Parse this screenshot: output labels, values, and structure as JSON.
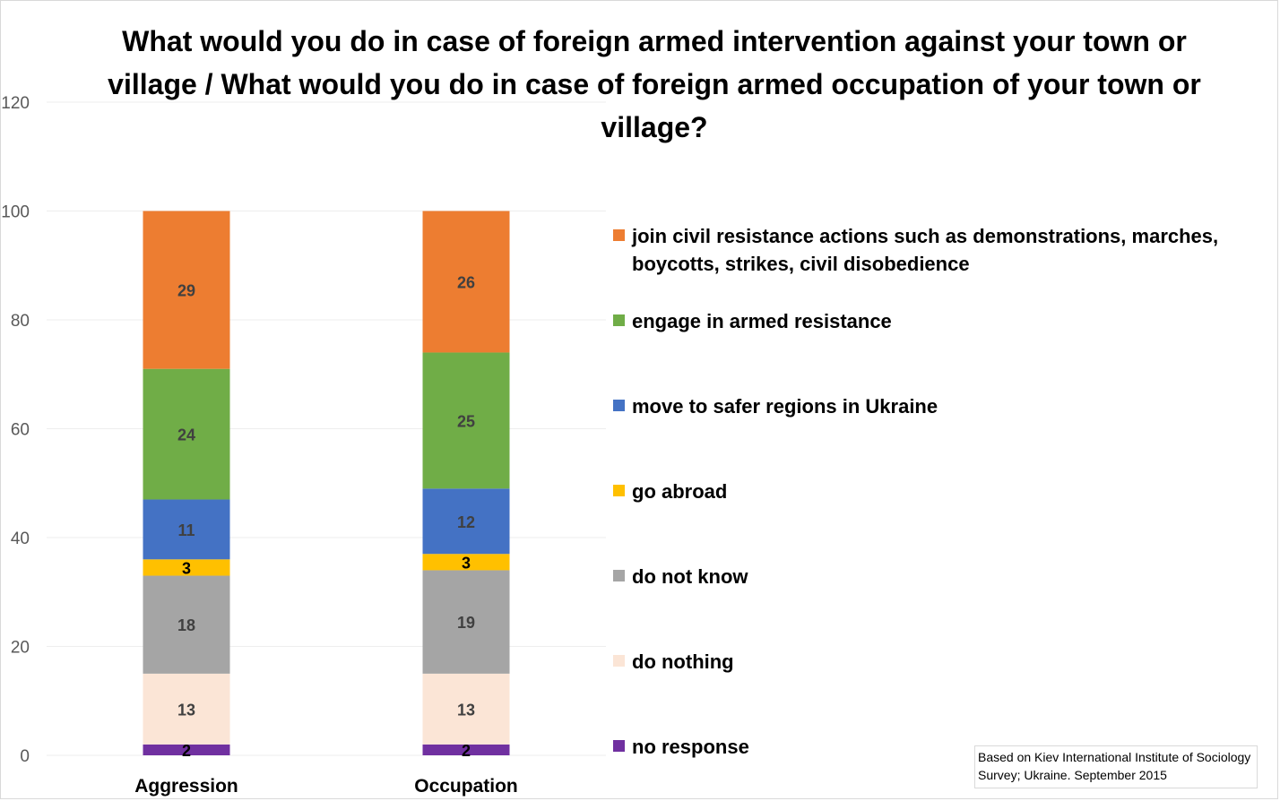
{
  "chart_data": {
    "type": "bar",
    "stacked": true,
    "title": "What would you do in case of foreign armed intervention against your town or village / What would you do in case of foreign armed occupation of your town or village?",
    "categories": [
      "Aggression",
      "Occupation"
    ],
    "ylim": [
      0,
      120
    ],
    "yticks": [
      0,
      20,
      40,
      60,
      80,
      100,
      120
    ],
    "grid": true,
    "legend_position": "right",
    "series": [
      {
        "name": "no response",
        "color": "#7030a0",
        "values": [
          2,
          2
        ]
      },
      {
        "name": "do nothing",
        "color": "#fbe5d6",
        "values": [
          13,
          13
        ]
      },
      {
        "name": "do not know",
        "color": "#a5a5a5",
        "values": [
          18,
          19
        ]
      },
      {
        "name": "go abroad",
        "color": "#ffc000",
        "values": [
          3,
          3
        ]
      },
      {
        "name": "move to safer regions in Ukraine",
        "color": "#4472c4",
        "values": [
          11,
          12
        ]
      },
      {
        "name": "engage in armed resistance",
        "color": "#70ad47",
        "values": [
          24,
          25
        ]
      },
      {
        "name": "join civil resistance actions such as demonstrations, marches, boycotts, strikes, civil disobedience",
        "color": "#ed7d31",
        "values": [
          29,
          26
        ]
      }
    ],
    "source_note": "Based on Kiev International Institute of Sociology Survey; Ukraine. September 2015"
  }
}
